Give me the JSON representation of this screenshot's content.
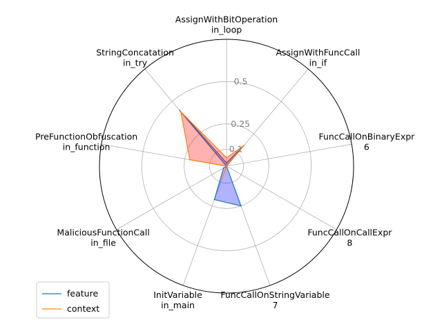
{
  "chart_data": {
    "type": "radar",
    "categories": [
      [
        "AssignWithBitOperation",
        "in_loop"
      ],
      [
        "AssignWithFuncCall",
        "in_if"
      ],
      [
        "FuncCallOnBinaryExpr",
        "6"
      ],
      [
        "FuncCallOnCallExpr",
        "8"
      ],
      [
        "FuncCallOnStringVariable",
        "7"
      ],
      [
        "InitVariable",
        "in_main"
      ],
      [
        "MaliciousFunctionCall",
        "in_file"
      ],
      [
        "PreFunctionObfuscation",
        "in_function"
      ],
      [
        "StringConcatation",
        "in_try"
      ]
    ],
    "series": [
      {
        "name": "feature",
        "color": "#1f77b4",
        "fill": "#0000ff",
        "values": [
          0.02,
          0.16,
          0.0,
          0.0,
          0.25,
          0.21,
          0.02,
          0.0,
          0.43
        ]
      },
      {
        "name": "context",
        "color": "#ff7f0e",
        "fill": "#ff0000",
        "values": [
          0.05,
          0.16,
          0.0,
          0.0,
          0.0,
          0.07,
          0.0,
          0.22,
          0.42
        ]
      }
    ],
    "rticks": [
      0.1,
      0.25,
      0.5
    ],
    "rtick_labels": [
      "0.1",
      "0.25",
      "0.5"
    ],
    "rlim": [
      0,
      0.75
    ],
    "grid": true,
    "legend_position": "lower-left"
  }
}
